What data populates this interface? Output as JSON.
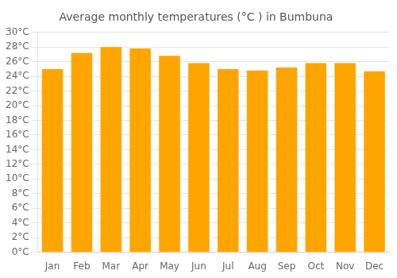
{
  "chart_data": {
    "type": "bar",
    "title": "Average monthly temperatures (°C ) in Bumbuna",
    "categories": [
      "Jan",
      "Feb",
      "Mar",
      "Apr",
      "May",
      "Jun",
      "Jul",
      "Aug",
      "Sep",
      "Oct",
      "Nov",
      "Dec"
    ],
    "values": [
      25.0,
      27.2,
      28.0,
      27.8,
      26.8,
      25.8,
      25.0,
      24.8,
      25.2,
      25.8,
      25.8,
      24.7
    ],
    "color": "#FFA500",
    "ylim": [
      0,
      30
    ],
    "yticks": [
      {
        "value": 0,
        "label": "0°C"
      },
      {
        "value": 2,
        "label": "2°C"
      },
      {
        "value": 4,
        "label": "4°C"
      },
      {
        "value": 6,
        "label": "6°C"
      },
      {
        "value": 8,
        "label": "8°C"
      },
      {
        "value": 10,
        "label": "10°C"
      },
      {
        "value": 12,
        "label": "12°C"
      },
      {
        "value": 14,
        "label": "14°C"
      },
      {
        "value": 16,
        "label": "16°C"
      },
      {
        "value": 18,
        "label": "18°C"
      },
      {
        "value": 20,
        "label": "20°C"
      },
      {
        "value": 22,
        "label": "22°C"
      },
      {
        "value": 24,
        "label": "24°C"
      },
      {
        "value": 26,
        "label": "26°C"
      },
      {
        "value": 28,
        "label": "28°C"
      },
      {
        "value": 30,
        "label": "30°C"
      }
    ],
    "grid": true
  }
}
